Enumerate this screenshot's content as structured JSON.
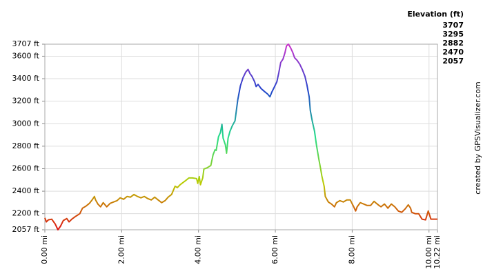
{
  "chart_data": {
    "type": "line",
    "legend_title": "Elevation (ft)",
    "color_scale": [
      {
        "value": 3707,
        "color": "#cc33cc"
      },
      {
        "value": 3295,
        "color": "#2244cc"
      },
      {
        "value": 2882,
        "color": "#22dd88"
      },
      {
        "value": 2470,
        "color": "#bbcc00"
      },
      {
        "value": 2057,
        "color": "#dd1111"
      }
    ],
    "credit": "created by GPSVisualizer.com",
    "grid": true,
    "xlim": [
      0,
      10.22
    ],
    "ylim": [
      2057,
      3707
    ],
    "xticks": [
      {
        "value": 0,
        "label": "0.00 mi"
      },
      {
        "value": 2,
        "label": "2.00 mi"
      },
      {
        "value": 4,
        "label": "4.00 mi"
      },
      {
        "value": 6,
        "label": "6.00 mi"
      },
      {
        "value": 8,
        "label": "8.00 mi"
      },
      {
        "value": 10,
        "label": "10.00 mi"
      },
      {
        "value": 10.22,
        "label": "10.22 mi"
      }
    ],
    "yticks": [
      {
        "value": 2057,
        "label": "2057 ft"
      },
      {
        "value": 2200,
        "label": "2200 ft"
      },
      {
        "value": 2400,
        "label": "2400 ft"
      },
      {
        "value": 2600,
        "label": "2600 ft"
      },
      {
        "value": 2800,
        "label": "2800 ft"
      },
      {
        "value": 3000,
        "label": "3000 ft"
      },
      {
        "value": 3200,
        "label": "3200 ft"
      },
      {
        "value": 3400,
        "label": "3400 ft"
      },
      {
        "value": 3600,
        "label": "3600 ft"
      },
      {
        "value": 3707,
        "label": "3707 ft"
      }
    ],
    "x": [
      0,
      0.04,
      0.09,
      0.18,
      0.27,
      0.34,
      0.41,
      0.48,
      0.57,
      0.63,
      0.7,
      0.8,
      0.91,
      0.98,
      1.07,
      1.16,
      1.23,
      1.29,
      1.32,
      1.38,
      1.45,
      1.52,
      1.61,
      1.7,
      1.79,
      1.88,
      1.96,
      2.05,
      2.14,
      2.23,
      2.32,
      2.41,
      2.5,
      2.59,
      2.68,
      2.77,
      2.86,
      2.95,
      3.04,
      3.13,
      3.21,
      3.3,
      3.39,
      3.45,
      3.52,
      3.59,
      3.66,
      3.75,
      3.84,
      3.95,
      3.98,
      4.02,
      4.05,
      4.11,
      4.14,
      4.23,
      4.32,
      4.38,
      4.43,
      4.46,
      4.52,
      4.57,
      4.61,
      4.64,
      4.7,
      4.73,
      4.77,
      4.82,
      4.88,
      4.95,
      5.02,
      5.09,
      5.16,
      5.23,
      5.29,
      5.34,
      5.39,
      5.46,
      5.5,
      5.55,
      5.63,
      5.71,
      5.8,
      5.86,
      5.91,
      5.98,
      6.04,
      6.09,
      6.14,
      6.2,
      6.25,
      6.29,
      6.34,
      6.39,
      6.45,
      6.5,
      6.57,
      6.64,
      6.7,
      6.77,
      6.82,
      6.88,
      6.91,
      6.96,
      7.02,
      7.07,
      7.13,
      7.18,
      7.21,
      7.27,
      7.3,
      7.38,
      7.46,
      7.54,
      7.59,
      7.68,
      7.77,
      7.86,
      7.95,
      8.04,
      8.09,
      8.13,
      8.21,
      8.3,
      8.39,
      8.48,
      8.57,
      8.63,
      8.7,
      8.75,
      8.84,
      8.93,
      9.02,
      9.11,
      9.2,
      9.29,
      9.38,
      9.46,
      9.52,
      9.55,
      9.64,
      9.73,
      9.82,
      9.91,
      9.98,
      10.05,
      10.22
    ],
    "values": [
      2163,
      2127,
      2145,
      2151,
      2108,
      2057,
      2090,
      2139,
      2157,
      2127,
      2151,
      2176,
      2200,
      2249,
      2267,
      2292,
      2322,
      2353,
      2322,
      2286,
      2261,
      2298,
      2261,
      2292,
      2304,
      2316,
      2341,
      2328,
      2353,
      2347,
      2371,
      2353,
      2341,
      2353,
      2334,
      2322,
      2347,
      2322,
      2298,
      2316,
      2347,
      2371,
      2444,
      2432,
      2457,
      2475,
      2493,
      2518,
      2518,
      2512,
      2469,
      2530,
      2457,
      2518,
      2597,
      2609,
      2628,
      2725,
      2768,
      2762,
      2884,
      2921,
      2994,
      2872,
      2811,
      2738,
      2872,
      2933,
      2982,
      3025,
      3208,
      3336,
      3410,
      3459,
      3483,
      3446,
      3422,
      3373,
      3330,
      3349,
      3312,
      3288,
      3263,
      3239,
      3282,
      3330,
      3373,
      3453,
      3544,
      3575,
      3630,
      3691,
      3707,
      3679,
      3636,
      3587,
      3562,
      3526,
      3483,
      3422,
      3349,
      3239,
      3117,
      3025,
      2933,
      2811,
      2689,
      2597,
      2536,
      2444,
      2353,
      2304,
      2286,
      2261,
      2298,
      2316,
      2304,
      2322,
      2322,
      2261,
      2224,
      2261,
      2298,
      2286,
      2273,
      2273,
      2310,
      2292,
      2273,
      2261,
      2286,
      2249,
      2286,
      2261,
      2224,
      2212,
      2243,
      2279,
      2249,
      2212,
      2200,
      2200,
      2151,
      2145,
      2224,
      2151,
      2151
    ]
  }
}
